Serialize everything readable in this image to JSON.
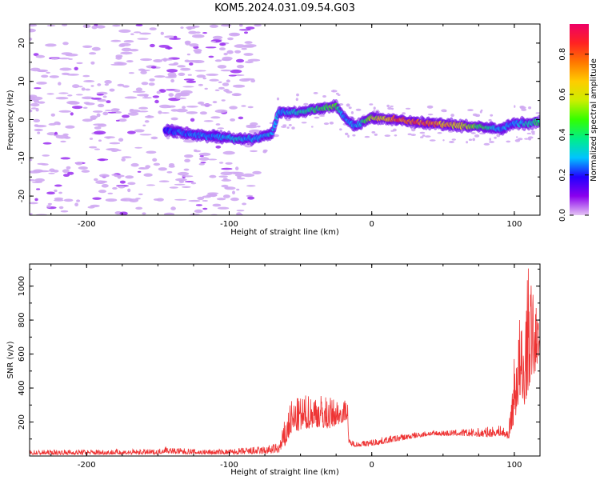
{
  "title": "KOM5.2024.031.09.54.G03",
  "colors": {
    "snr_line": "#ee3333",
    "axis": "#000000",
    "background": "#ffffff"
  },
  "colorbar": {
    "label": "Normalized spectral amplitude",
    "ticks": [
      0.0,
      0.2,
      0.4,
      0.6,
      0.8
    ],
    "tick_labels": [
      "0.0",
      "0.2",
      "0.4",
      "0.6",
      "0.8"
    ],
    "range": [
      0,
      0.95
    ],
    "colormap": "rainbow"
  },
  "chart_data": [
    {
      "type": "heatmap",
      "name": "spectrogram",
      "title": "KOM5.2024.031.09.54.G03",
      "xlabel": "Height of straight line (km)",
      "ylabel": "Frequency (Hz)",
      "xlim": [
        -240,
        118
      ],
      "ylim": [
        -25,
        25
      ],
      "xticks": [
        -200,
        -100,
        0,
        100
      ],
      "xtick_labels": [
        "-200",
        "-100",
        "0",
        "100"
      ],
      "yticks": [
        -20,
        -10,
        0,
        10,
        20
      ],
      "ytick_labels": [
        "-20",
        "-10",
        "0",
        "10",
        "20"
      ],
      "signal_track": {
        "x": [
          -140,
          -125,
          -110,
          -95,
          -80,
          -70,
          -65,
          -50,
          -35,
          -25,
          -20,
          -15,
          -10,
          0,
          20,
          40,
          60,
          80,
          90,
          100,
          110,
          118
        ],
        "freq_hz": [
          -3,
          -4,
          -4.5,
          -5,
          -5,
          -3.5,
          2,
          2,
          3,
          3.5,
          1,
          -1,
          -1.5,
          0.5,
          0,
          -1,
          -1.5,
          -2,
          -2.5,
          -1,
          -1,
          -0.5
        ],
        "amplitude": [
          0.25,
          0.3,
          0.3,
          0.35,
          0.3,
          0.35,
          0.3,
          0.4,
          0.5,
          0.55,
          0.3,
          0.3,
          0.3,
          0.6,
          0.9,
          0.85,
          0.7,
          0.45,
          0.3,
          0.3,
          0.4,
          0.45
        ]
      },
      "noise_region_x": [
        -240,
        -80
      ]
    },
    {
      "type": "line",
      "name": "snr",
      "xlabel": "Height of straight line (km)",
      "ylabel": "SNR (v/v)",
      "xlim": [
        -240,
        118
      ],
      "ylim": [
        0,
        1130
      ],
      "xticks": [
        -200,
        -100,
        0,
        100
      ],
      "xtick_labels": [
        "-200",
        "-100",
        "0",
        "100"
      ],
      "yticks": [
        200,
        400,
        600,
        800,
        1000
      ],
      "ytick_labels": [
        "200",
        "400",
        "600",
        "800",
        "1000"
      ],
      "envelope": {
        "x": [
          -240,
          -200,
          -150,
          -145,
          -140,
          -120,
          -100,
          -90,
          -75,
          -65,
          -60,
          -57,
          -50,
          -40,
          -30,
          -20,
          -17,
          -16,
          -10,
          0,
          20,
          40,
          60,
          80,
          90,
          96,
          100,
          103,
          106,
          110,
          112,
          115,
          118
        ],
        "low": [
          8,
          8,
          10,
          20,
          14,
          10,
          10,
          10,
          12,
          20,
          60,
          130,
          150,
          170,
          160,
          200,
          220,
          60,
          55,
          60,
          90,
          120,
          120,
          110,
          120,
          100,
          200,
          300,
          250,
          400,
          450,
          500,
          620
        ],
        "high": [
          35,
          40,
          40,
          60,
          50,
          40,
          40,
          50,
          60,
          80,
          250,
          330,
          350,
          380,
          350,
          330,
          340,
          100,
          85,
          100,
          130,
          150,
          155,
          170,
          180,
          160,
          600,
          880,
          750,
          1130,
          1050,
          900,
          800
        ]
      }
    }
  ]
}
